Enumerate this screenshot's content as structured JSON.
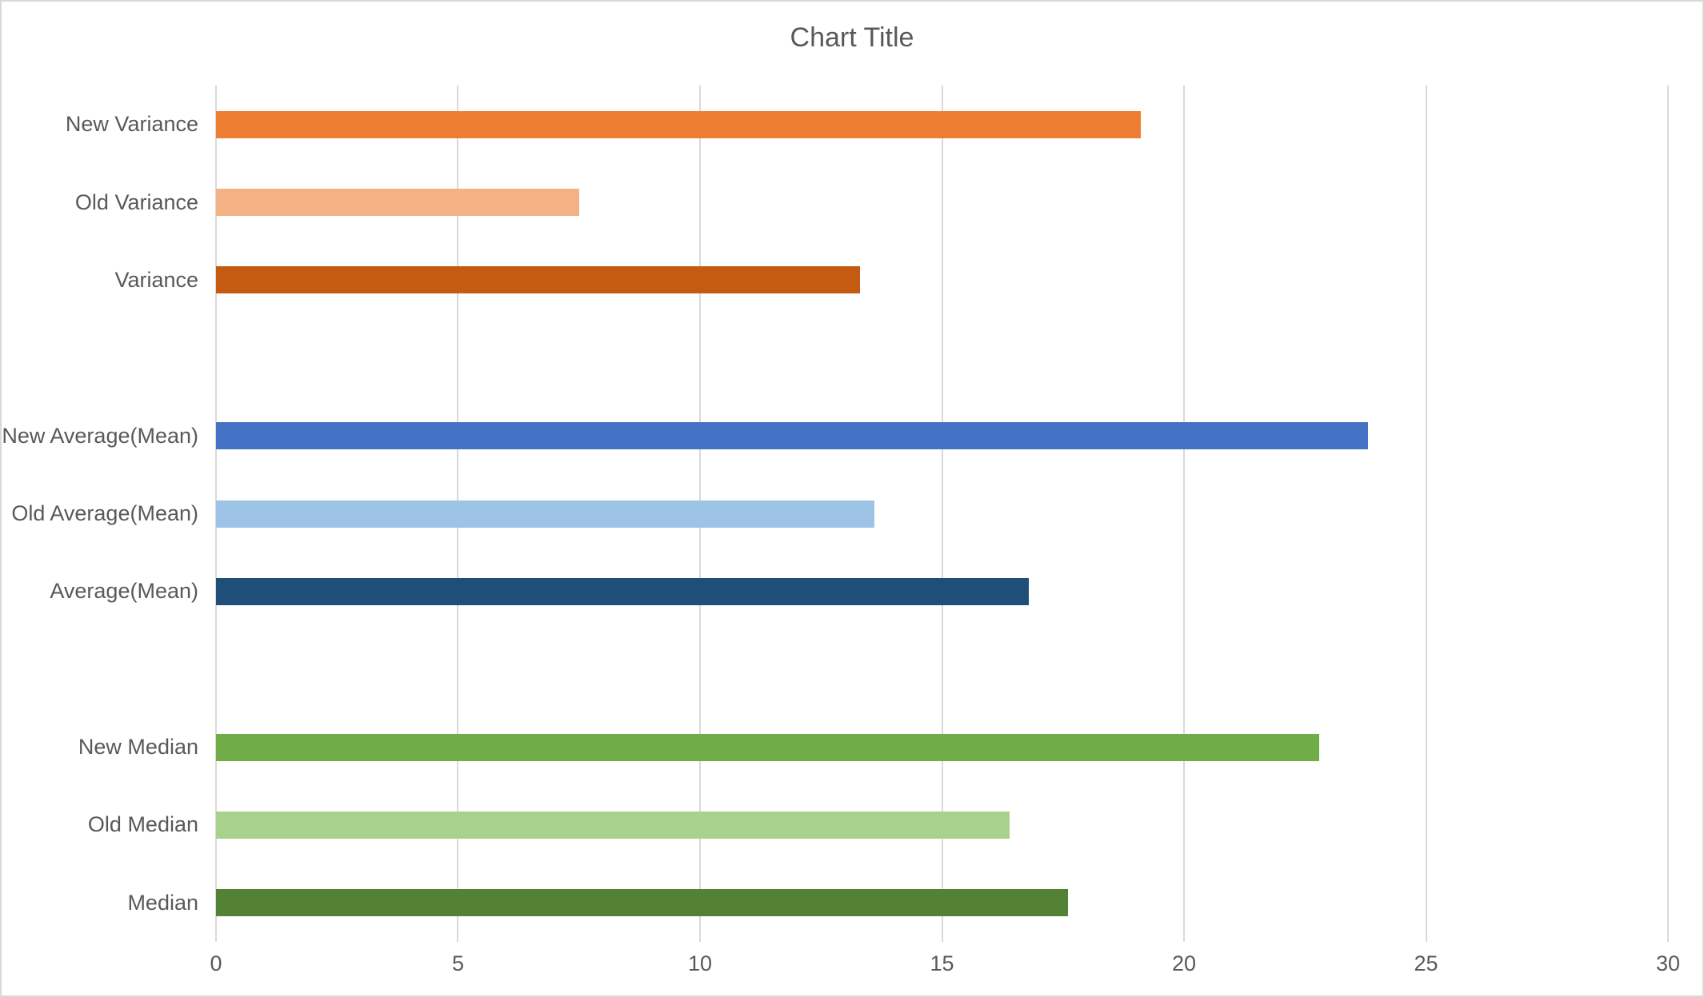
{
  "chart_data": {
    "type": "bar",
    "orientation": "horizontal",
    "title": "Chart Title",
    "categories_top_to_bottom": [
      "New Variance",
      "Old Variance",
      "Variance",
      "New Average(Mean)",
      "Old Average(Mean)",
      "Average(Mean)",
      "New Median",
      "Old Median",
      "Median"
    ],
    "values": [
      19.1,
      7.5,
      13.3,
      23.8,
      13.6,
      16.8,
      22.8,
      16.4,
      17.6
    ],
    "colors": [
      "#ED7D31",
      "#F4B183",
      "#C55A11",
      "#4472C4",
      "#9DC3E6",
      "#1F4E79",
      "#70AD47",
      "#A9D18E",
      "#548235"
    ],
    "group_gaps_after_index": [
      2,
      5
    ],
    "xlim": [
      0,
      30
    ],
    "xticks": [
      0,
      5,
      10,
      15,
      20,
      25,
      30
    ],
    "grid": "vertical-only",
    "legend": "none",
    "text_color": "#595959",
    "gridline_color": "#D9D9D9"
  }
}
